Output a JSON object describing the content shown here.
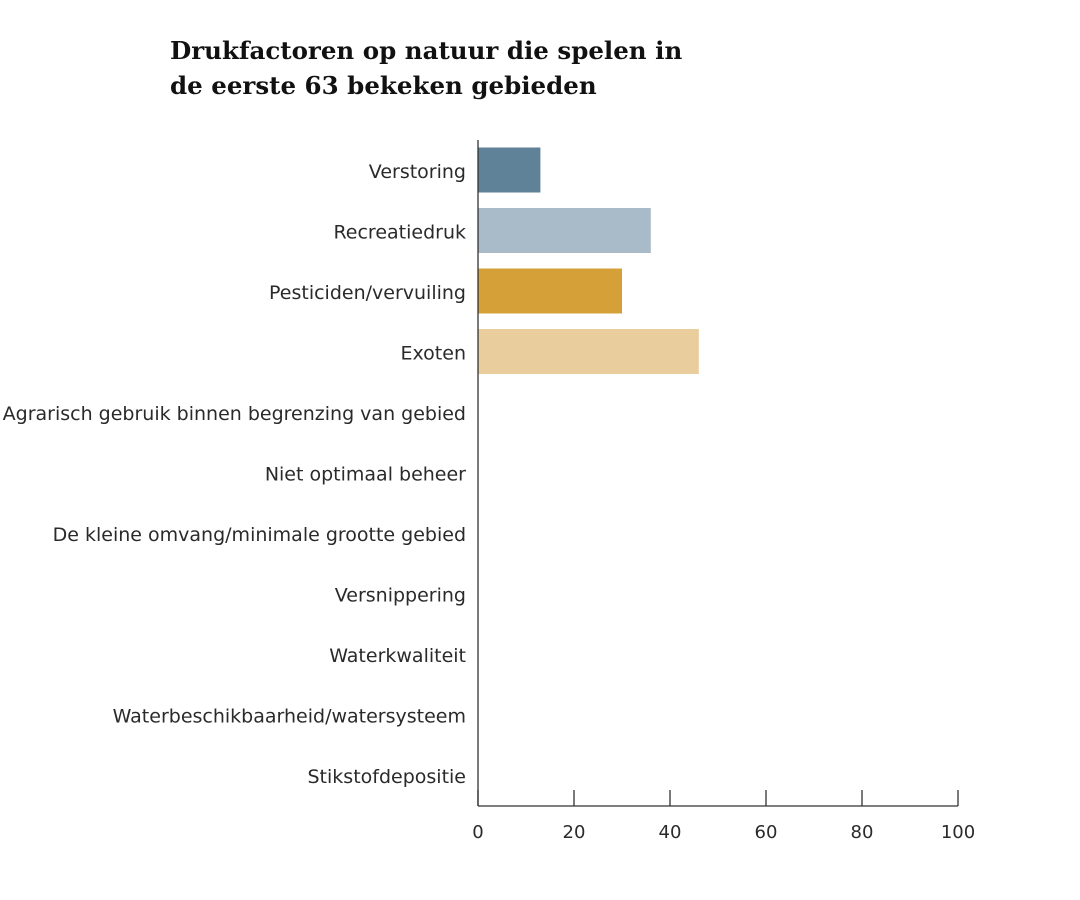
{
  "chart_data": {
    "type": "bar",
    "orientation": "horizontal",
    "title_lines": [
      "Drukfactoren op natuur die spelen in",
      "de eerste 63 bekeken gebieden"
    ],
    "xlabel": "",
    "ylabel": "",
    "xlim": [
      0,
      100
    ],
    "x_ticks": [
      0,
      20,
      40,
      60,
      80,
      100
    ],
    "grid": false,
    "legend": "none",
    "categories": [
      "Verstoring",
      "Recreatiedruk",
      "Pesticiden/vervuiling",
      "Exoten",
      "Agrarisch gebruik binnen begrenzing van gebied",
      "Niet optimaal beheer",
      "De kleine omvang/minimale grootte gebied",
      "Versnippering",
      "Waterkwaliteit",
      "Waterbeschikbaarheid/watersysteem",
      "Stikstofdepositie"
    ],
    "values": [
      13,
      36,
      30,
      46,
      0,
      0,
      0,
      0,
      0,
      0,
      0
    ],
    "colors": [
      "#5f8299",
      "#a9bbc8",
      "#d4a037",
      "#eacd9d",
      "#ffffff",
      "#ffffff",
      "#ffffff",
      "#ffffff",
      "#ffffff",
      "#ffffff",
      "#ffffff"
    ],
    "axis_color": "#333333"
  }
}
